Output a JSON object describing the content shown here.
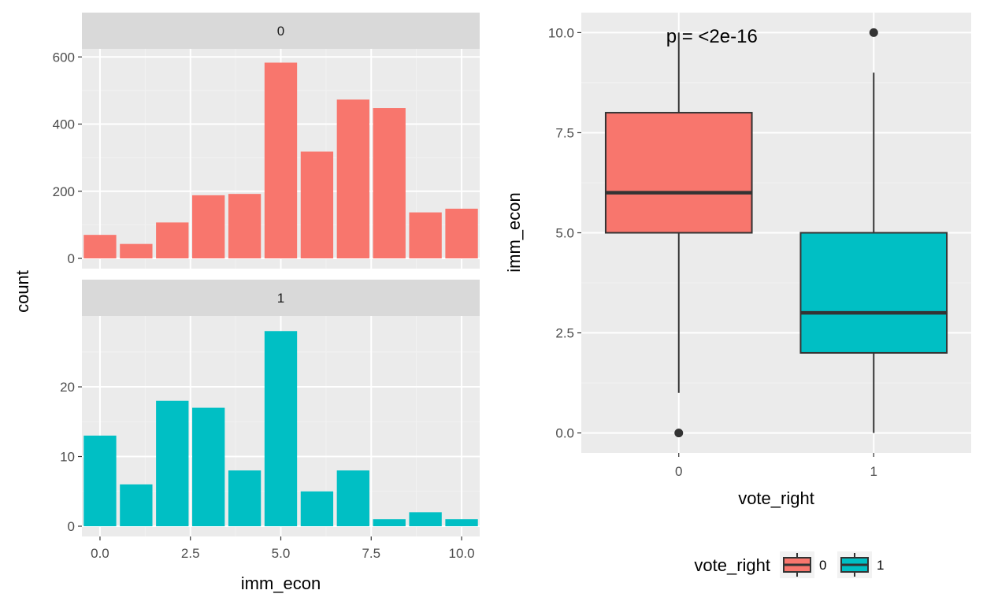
{
  "chart_data": [
    {
      "type": "bar",
      "facet_variable": "vote_right",
      "xlabel": "imm_econ",
      "ylabel": "count",
      "x_ticks": [
        "0.0",
        "2.5",
        "5.0",
        "7.5",
        "10.0"
      ],
      "x_tick_values": [
        0,
        2.5,
        5,
        7.5,
        10
      ],
      "xlim": [
        -0.5,
        10.5
      ],
      "grid": true,
      "panels": [
        {
          "strip": "0",
          "color": "#F8766D",
          "x": [
            0,
            1,
            2,
            3,
            4,
            5,
            6,
            7,
            8,
            9,
            10
          ],
          "values": [
            70,
            43,
            107,
            188,
            192,
            583,
            318,
            473,
            448,
            137,
            148
          ],
          "ylim": [
            0,
            610
          ],
          "y_ticks": [
            "0",
            "200",
            "400",
            "600"
          ],
          "y_tick_values": [
            0,
            200,
            400,
            600
          ]
        },
        {
          "strip": "1",
          "color": "#00BFC4",
          "x": [
            0,
            1,
            2,
            3,
            4,
            5,
            6,
            7,
            8,
            9,
            10
          ],
          "values": [
            13,
            6,
            18,
            17,
            8,
            28,
            5,
            8,
            1,
            2,
            1
          ],
          "ylim": [
            0,
            29.5
          ],
          "y_ticks": [
            "0",
            "10",
            "20"
          ],
          "y_tick_values": [
            0,
            10,
            20
          ]
        }
      ]
    },
    {
      "type": "box",
      "xlabel": "vote_right",
      "ylabel": "imm_econ",
      "annotation": "p = <2e-16",
      "ylim": [
        -0.5,
        10.5
      ],
      "y_ticks": [
        "0.0",
        "2.5",
        "5.0",
        "7.5",
        "10.0"
      ],
      "y_tick_values": [
        0,
        2.5,
        5,
        7.5,
        10
      ],
      "grid": true,
      "groups": [
        {
          "label": "0",
          "color": "#F8766D",
          "lower_whisker": 1,
          "q1": 5,
          "median": 6,
          "q3": 8,
          "upper_whisker": 10,
          "outliers": [
            0
          ]
        },
        {
          "label": "1",
          "color": "#00BFC4",
          "lower_whisker": 0,
          "q1": 2,
          "median": 3,
          "q3": 5,
          "upper_whisker": 9,
          "outliers": [
            10
          ]
        }
      ],
      "legend": {
        "title": "vote_right",
        "position": "bottom",
        "items": [
          {
            "label": "0",
            "color": "#F8766D"
          },
          {
            "label": "1",
            "color": "#00BFC4"
          }
        ]
      }
    }
  ]
}
